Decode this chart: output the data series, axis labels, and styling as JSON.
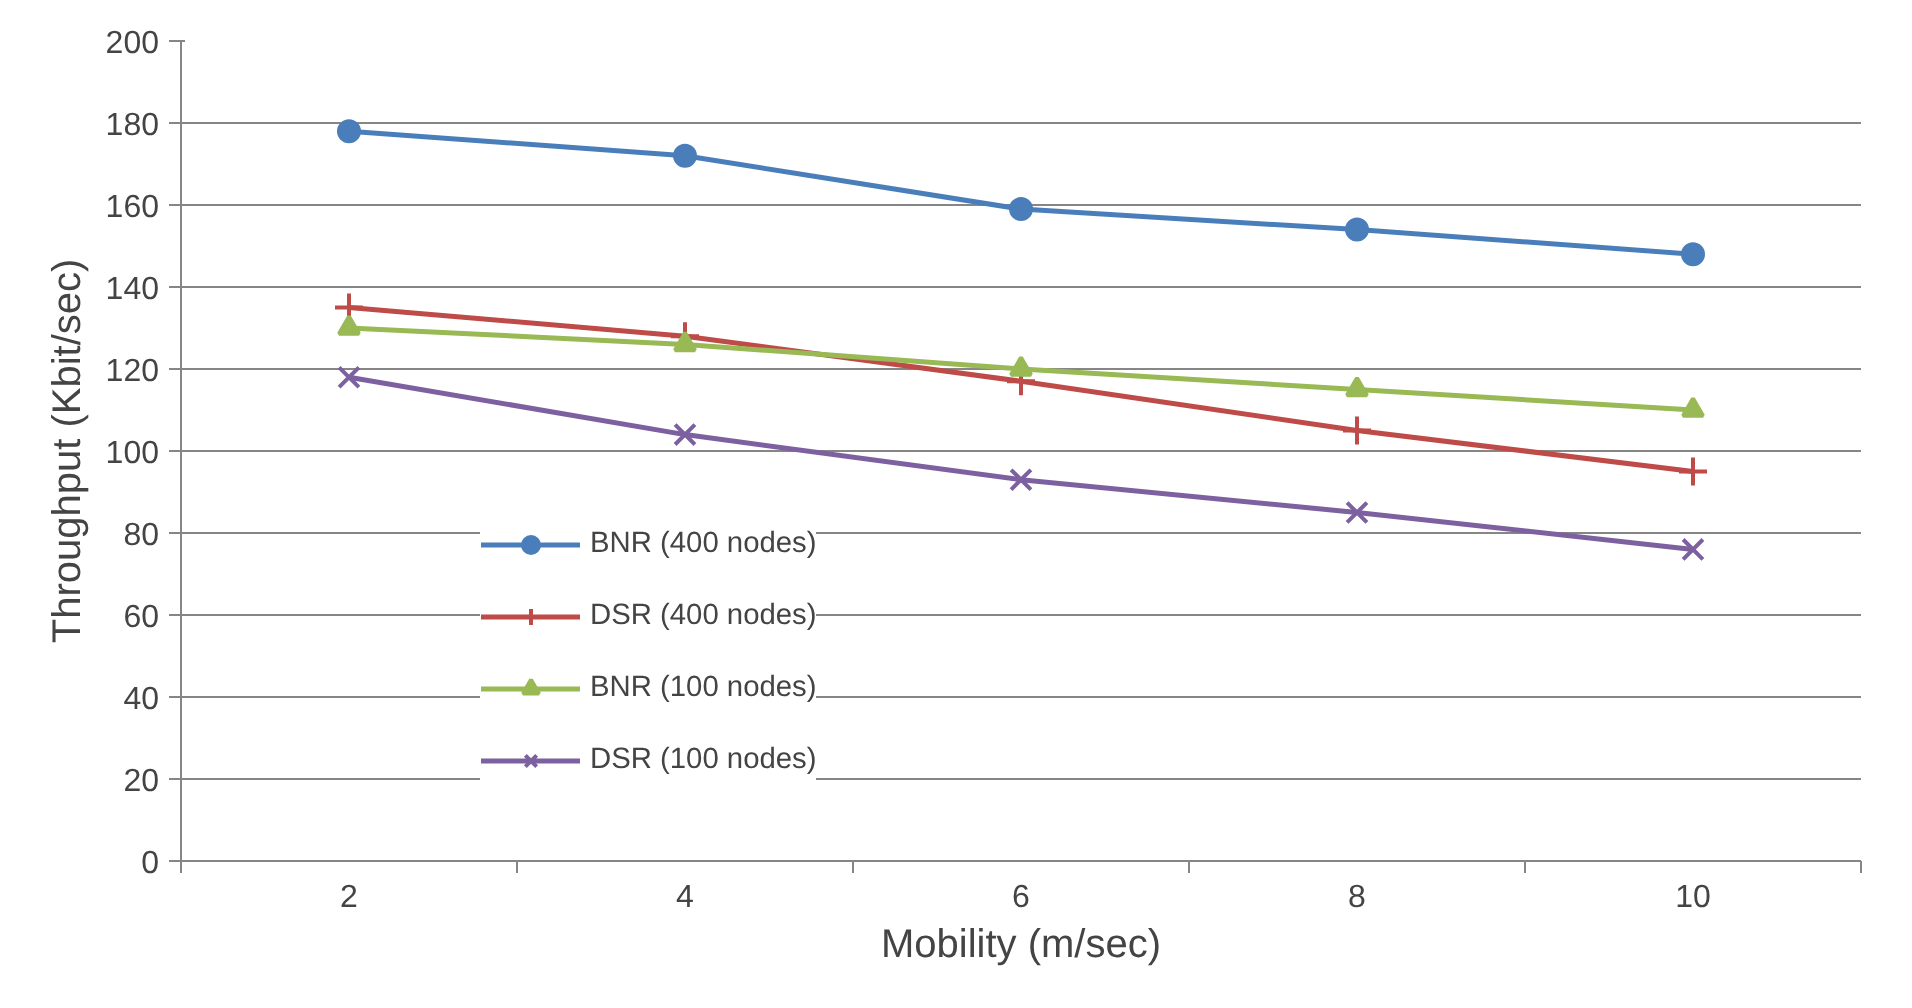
{
  "chart_data": {
    "type": "line",
    "xlabel": "Mobility (m/sec)",
    "ylabel": "Throughput (Kbit/sec)",
    "categories": [
      "2",
      "4",
      "6",
      "8",
      "10"
    ],
    "ylim": [
      0,
      200
    ],
    "yticks": [
      0,
      20,
      40,
      60,
      80,
      100,
      120,
      140,
      160,
      180,
      200
    ],
    "grid": "y",
    "legend": "left",
    "series": [
      {
        "name": "BNR (400 nodes)",
        "color": "#4a7ebb",
        "marker": "circle",
        "values": [
          178,
          172,
          159,
          154,
          148
        ]
      },
      {
        "name": "DSR (400 nodes)",
        "color": "#be4b48",
        "marker": "cross",
        "values": [
          135,
          128,
          117,
          105,
          95
        ]
      },
      {
        "name": "BNR (100 nodes)",
        "color": "#98b954",
        "marker": "triangle",
        "values": [
          130,
          126,
          120,
          115,
          110
        ]
      },
      {
        "name": "DSR (100 nodes)",
        "color": "#7d60a0",
        "marker": "x",
        "values": [
          118,
          104,
          93,
          85,
          76
        ]
      }
    ]
  }
}
